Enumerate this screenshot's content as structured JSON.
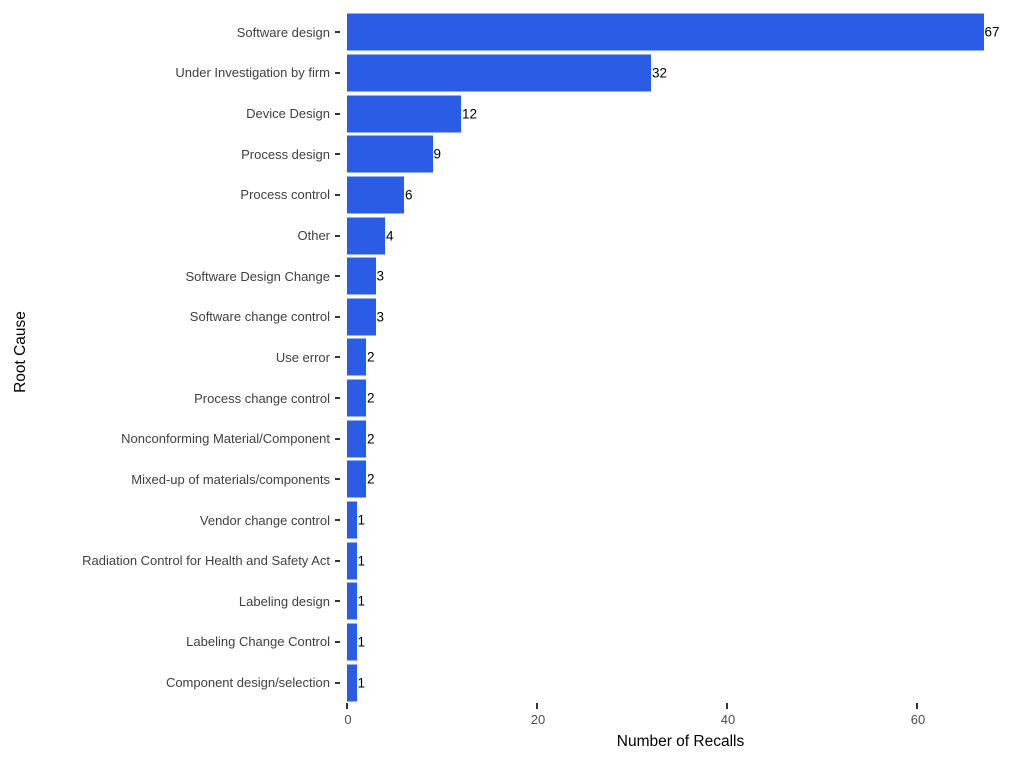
{
  "chart_data": {
    "type": "bar",
    "orientation": "horizontal",
    "title": "",
    "xlabel": "Number of Recalls",
    "ylabel": "Root Cause",
    "categories": [
      "Software design",
      "Under Investigation by firm",
      "Device Design",
      "Process design",
      "Process control",
      "Other",
      "Software Design Change",
      "Software change control",
      "Use error",
      "Process change control",
      "Nonconforming Material/Component",
      "Mixed-up of materials/components",
      "Vendor change control",
      "Radiation Control for Health and Safety Act",
      "Labeling design",
      "Labeling Change Control",
      "Component design/selection"
    ],
    "values": [
      67,
      32,
      12,
      9,
      6,
      4,
      3,
      3,
      2,
      2,
      2,
      2,
      1,
      1,
      1,
      1,
      1
    ],
    "x_ticks": [
      0,
      20,
      40,
      60
    ],
    "xlim": [
      0,
      70
    ],
    "bar_color": "#2b5ce6",
    "tick_color": "#333333",
    "axis_text_color": "#4d4d4d",
    "value_label_color": "#000000",
    "grid": false,
    "legend": false,
    "value_labels": true
  }
}
